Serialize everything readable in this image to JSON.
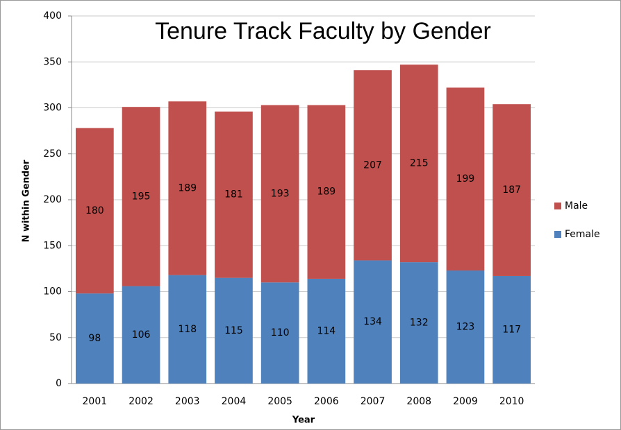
{
  "chart_data": {
    "type": "stacked_bar",
    "title": "Tenure Track Faculty by Gender",
    "x_label": "Year",
    "y_label": "N within Gender",
    "categories": [
      "2001",
      "2002",
      "2003",
      "2004",
      "2005",
      "2006",
      "2007",
      "2008",
      "2009",
      "2010"
    ],
    "series": [
      {
        "name": "Female",
        "color": "#4f81bd",
        "values": [
          98,
          106,
          118,
          115,
          110,
          114,
          134,
          132,
          123,
          117
        ]
      },
      {
        "name": "Male",
        "color": "#c0504d",
        "values": [
          180,
          195,
          189,
          181,
          193,
          189,
          207,
          215,
          199,
          187
        ]
      }
    ],
    "ylim": [
      0,
      400
    ],
    "yticks": [
      0,
      50,
      100,
      150,
      200,
      250,
      300,
      350,
      400
    ],
    "grid": true,
    "legend": "right"
  }
}
